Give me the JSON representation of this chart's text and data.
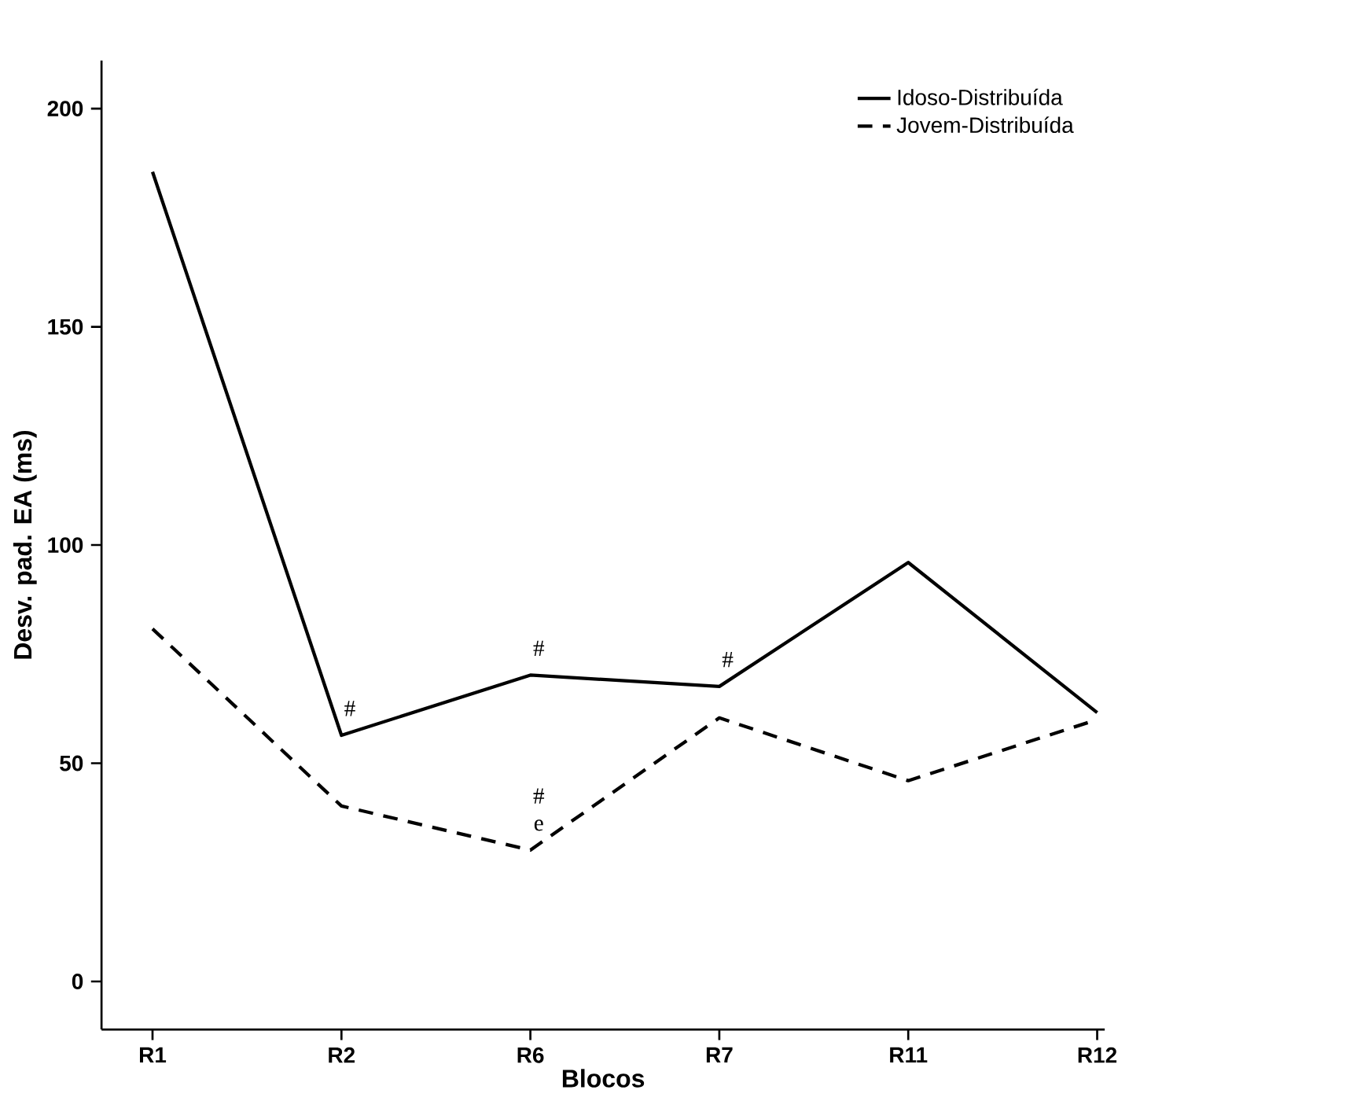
{
  "chart_data": {
    "type": "line",
    "xlabel": "Blocos",
    "ylabel": "Desv. pad. EA (ms)",
    "categories": [
      "R1",
      "R2",
      "R6",
      "R7",
      "R11",
      "R12"
    ],
    "series": [
      {
        "name": "Idoso-Distribuída",
        "color": "#000000",
        "line_style": "solid",
        "values": [
          185.5,
          56.4,
          70.2,
          67.6,
          96.0,
          61.6
        ]
      },
      {
        "name": "Jovem-Distribuída",
        "color": "#000000",
        "line_style": "dashed",
        "values": [
          80.8,
          40.2,
          30.1,
          60.4,
          46.0,
          60.0
        ]
      }
    ],
    "ylim": [
      -11,
      211
    ],
    "yticks": [
      0,
      50,
      100,
      150,
      200
    ],
    "grid": false,
    "legend": "top right",
    "marker": "none",
    "annotations": [
      {
        "text": "#",
        "x": "R2",
        "y": 56.4
      },
      {
        "text": "#",
        "x": "R6",
        "y": 70.2
      },
      {
        "text": "#",
        "x": "R7",
        "y": 67.6
      },
      {
        "text": "e",
        "x": "R6",
        "y": 30.1
      },
      {
        "text": "#",
        "x": "R6",
        "y": 30.1
      }
    ]
  }
}
